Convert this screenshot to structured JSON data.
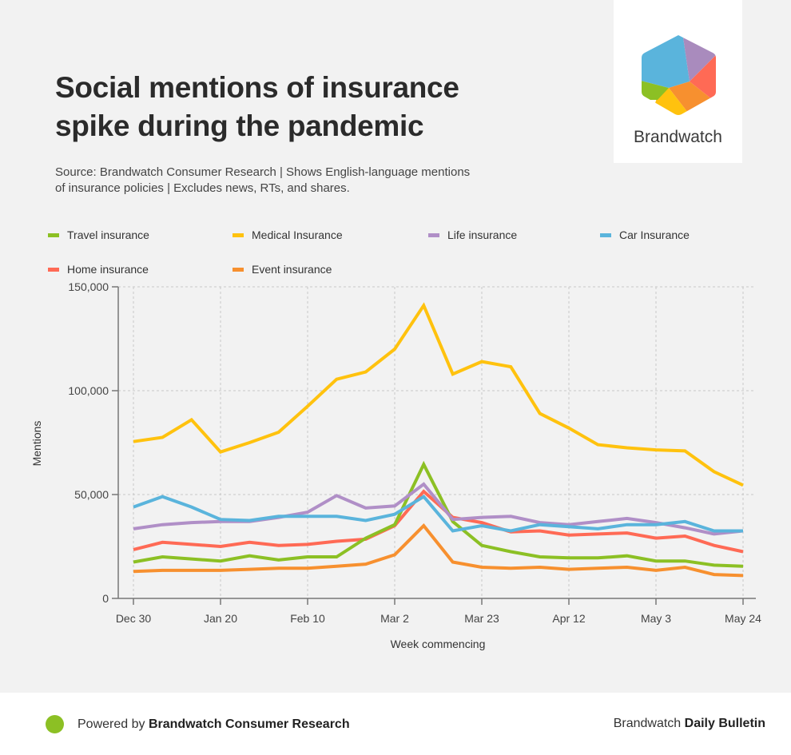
{
  "header": {
    "title": "Social mentions of insurance spike during the pandemic",
    "subtitle": "Source: Brandwatch Consumer Research | Shows English-language mentions of insurance policies | Excludes news, RTs, and shares."
  },
  "logo": {
    "text": "Brandwatch",
    "colors": [
      "#5ab4dc",
      "#a98bbd",
      "#ff6a55",
      "#f7902f",
      "#ffc20e",
      "#8cc024"
    ]
  },
  "footer": {
    "powered_prefix": "Powered by",
    "powered_brand": "Brandwatch Consumer Research",
    "right_prefix": "Brandwatch",
    "right_brand": "Daily Bulletin",
    "dot_color": "#8cc024"
  },
  "chart_data": {
    "type": "line",
    "title": "Social mentions of insurance spike during the pandemic",
    "xlabel": "Week commencing",
    "ylabel": "Mentions",
    "ylim": [
      0,
      150000
    ],
    "yticks": [
      0,
      50000,
      100000,
      150000
    ],
    "ytick_labels": [
      "0",
      "50,000",
      "100,000",
      "150,000"
    ],
    "xtick_labels": [
      "Dec 30",
      "Jan 20",
      "Feb 10",
      "Mar 2",
      "Mar 23",
      "Apr 12",
      "May 3",
      "May 24"
    ],
    "xtick_every": 3,
    "grid": true,
    "legend_position": "top",
    "x": [
      "Dec 30",
      "Jan 6",
      "Jan 13",
      "Jan 20",
      "Jan 27",
      "Feb 3",
      "Feb 10",
      "Feb 17",
      "Feb 24",
      "Mar 2",
      "Mar 9",
      "Mar 16",
      "Mar 23",
      "Mar 30",
      "Apr 6",
      "Apr 12",
      "Apr 19",
      "Apr 26",
      "May 3",
      "May 10",
      "May 17",
      "May 24"
    ],
    "series": [
      {
        "name": "Travel insurance",
        "color": "#8cc024",
        "values": [
          17500,
          20000,
          19000,
          18000,
          20500,
          18500,
          20000,
          20000,
          29000,
          35500,
          64500,
          37000,
          25500,
          22500,
          20000,
          19500,
          19500,
          20500,
          18000,
          18000,
          16000,
          15500
        ]
      },
      {
        "name": "Medical Insurance",
        "color": "#ffc20e",
        "values": [
          75500,
          77500,
          86000,
          70500,
          75000,
          80000,
          92500,
          105500,
          109000,
          120000,
          141000,
          108000,
          114000,
          111500,
          89000,
          82000,
          74000,
          72500,
          71500,
          71000,
          61000,
          54500
        ]
      },
      {
        "name": "Life insurance",
        "color": "#b08fc7",
        "values": [
          33500,
          35500,
          36500,
          37000,
          37000,
          39000,
          41500,
          49500,
          43500,
          44500,
          55000,
          38000,
          39000,
          39500,
          36500,
          35500,
          37000,
          38500,
          36500,
          34000,
          31000,
          32500
        ]
      },
      {
        "name": "Car Insurance",
        "color": "#5ab4dc",
        "values": [
          44000,
          49000,
          44000,
          38000,
          37500,
          39500,
          39500,
          39500,
          37500,
          40500,
          49000,
          32500,
          35000,
          32500,
          35500,
          34500,
          33500,
          35500,
          35500,
          37000,
          32500,
          32500
        ]
      },
      {
        "name": "Home insurance",
        "color": "#ff6a55",
        "values": [
          23500,
          27000,
          26000,
          25000,
          27000,
          25500,
          26000,
          27500,
          28500,
          35000,
          51500,
          39000,
          36500,
          32000,
          32500,
          30500,
          31000,
          31500,
          29000,
          30000,
          25500,
          22500
        ]
      },
      {
        "name": "Event insurance",
        "color": "#f7902f",
        "values": [
          13000,
          13500,
          13500,
          13500,
          14000,
          14500,
          14500,
          15500,
          16500,
          21000,
          35000,
          17500,
          15000,
          14500,
          15000,
          14000,
          14500,
          15000,
          13500,
          15000,
          11500,
          11000
        ]
      }
    ]
  }
}
